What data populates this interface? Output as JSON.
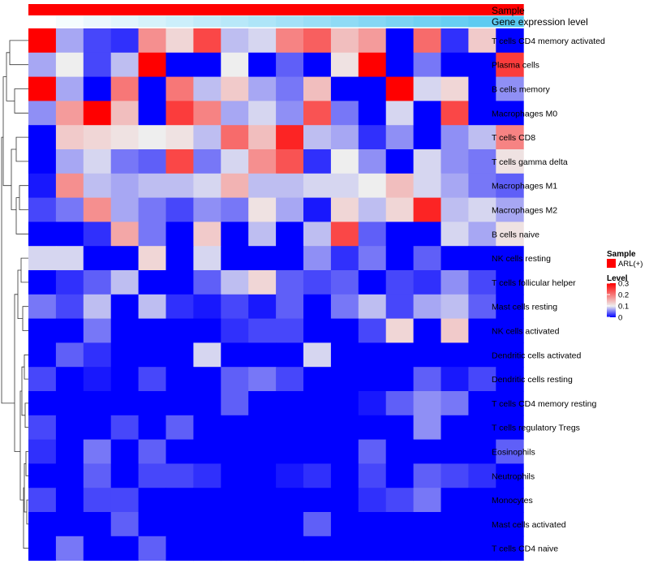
{
  "chart_data": {
    "type": "heatmap",
    "title": "",
    "annotations": [
      {
        "name": "Sample",
        "key": "sample"
      },
      {
        "name": "Gene expression level",
        "key": "expression"
      }
    ],
    "annotation_colors": {
      "sample": "#ff0000",
      "expression_low": "#ffffff",
      "expression_high": "#56c8f0"
    },
    "rows": [
      "T cells CD4 memory activated",
      "Plasma cells",
      "B cells memory",
      "Macrophages M0",
      "T cells CD8",
      "T cells gamma delta",
      "Macrophages M1",
      "Macrophages M2",
      "B cells naive",
      "NK cells resting",
      "T cells follicular helper",
      "Mast cells resting",
      "NK cells activated",
      "Dendritic cells activated",
      "Dendritic cells resting",
      "T cells CD4 memory resting",
      "T cells regulatory  Tregs",
      "Eosinophils",
      "Neutrophils",
      "Monocytes",
      "Mast cells activated",
      "T cells CD4 naive"
    ],
    "column_count": 18,
    "values": [
      [
        0.3,
        0.07,
        0.03,
        0.02,
        0.18,
        0.12,
        0.24,
        0.08,
        0.09,
        0.19,
        0.22,
        0.14,
        0.17,
        0.0,
        0.21,
        0.02,
        0.13,
        0.0
      ],
      [
        0.07,
        0.1,
        0.03,
        0.08,
        0.3,
        0.0,
        0.0,
        0.1,
        0.0,
        0.04,
        0.0,
        0.11,
        0.3,
        0.0,
        0.05,
        0.0,
        0.0,
        0.25
      ],
      [
        0.3,
        0.07,
        0.0,
        0.2,
        0.0,
        0.2,
        0.08,
        0.13,
        0.07,
        0.05,
        0.14,
        0.0,
        0.0,
        0.3,
        0.09,
        0.12,
        0.0,
        0.06
      ],
      [
        0.06,
        0.17,
        0.3,
        0.14,
        0.0,
        0.25,
        0.19,
        0.07,
        0.09,
        0.06,
        0.23,
        0.05,
        0.0,
        0.09,
        0.0,
        0.24,
        0.0,
        0.0
      ],
      [
        0.0,
        0.13,
        0.12,
        0.11,
        0.1,
        0.11,
        0.08,
        0.21,
        0.14,
        0.27,
        0.08,
        0.07,
        0.02,
        0.06,
        0.0,
        0.06,
        0.08,
        0.19
      ],
      [
        0.0,
        0.07,
        0.09,
        0.05,
        0.04,
        0.24,
        0.05,
        0.09,
        0.18,
        0.23,
        0.02,
        0.1,
        0.06,
        0.0,
        0.09,
        0.06,
        0.05,
        0.11
      ],
      [
        0.01,
        0.18,
        0.08,
        0.07,
        0.08,
        0.08,
        0.09,
        0.15,
        0.08,
        0.08,
        0.09,
        0.09,
        0.1,
        0.14,
        0.09,
        0.07,
        0.05,
        0.04
      ],
      [
        0.03,
        0.05,
        0.18,
        0.07,
        0.05,
        0.03,
        0.06,
        0.05,
        0.11,
        0.07,
        0.01,
        0.12,
        0.08,
        0.12,
        0.27,
        0.08,
        0.09,
        0.07
      ],
      [
        0.0,
        0.0,
        0.02,
        0.16,
        0.05,
        0.0,
        0.13,
        0.0,
        0.08,
        0.0,
        0.08,
        0.24,
        0.04,
        0.0,
        0.0,
        0.09,
        0.07,
        0.11
      ],
      [
        0.09,
        0.09,
        0.0,
        0.0,
        0.12,
        0.0,
        0.09,
        0.0,
        0.0,
        0.0,
        0.06,
        0.02,
        0.05,
        0.0,
        0.04,
        0.0,
        0.0,
        0.0
      ],
      [
        0.0,
        0.02,
        0.04,
        0.08,
        0.0,
        0.0,
        0.04,
        0.08,
        0.12,
        0.04,
        0.03,
        0.04,
        0.0,
        0.03,
        0.02,
        0.06,
        0.03,
        0.0
      ],
      [
        0.05,
        0.03,
        0.08,
        0.0,
        0.08,
        0.02,
        0.01,
        0.03,
        0.01,
        0.04,
        0.0,
        0.05,
        0.08,
        0.03,
        0.07,
        0.08,
        0.04,
        0.0
      ],
      [
        0.0,
        0.0,
        0.05,
        0.0,
        0.0,
        0.0,
        0.0,
        0.02,
        0.03,
        0.03,
        0.0,
        0.0,
        0.03,
        0.12,
        0.0,
        0.13,
        0.0,
        0.0
      ],
      [
        0.0,
        0.04,
        0.02,
        0.0,
        0.0,
        0.0,
        0.09,
        0.0,
        0.0,
        0.0,
        0.09,
        0.0,
        0.0,
        0.0,
        0.0,
        0.0,
        0.0,
        0.0
      ],
      [
        0.03,
        0.0,
        0.01,
        0.0,
        0.03,
        0.0,
        0.0,
        0.04,
        0.05,
        0.03,
        0.0,
        0.0,
        0.0,
        0.0,
        0.04,
        0.01,
        0.03,
        0.0
      ],
      [
        0.0,
        0.0,
        0.0,
        0.0,
        0.0,
        0.0,
        0.0,
        0.04,
        0.0,
        0.0,
        0.0,
        0.0,
        0.01,
        0.04,
        0.06,
        0.05,
        0.0,
        0.0
      ],
      [
        0.03,
        0.0,
        0.0,
        0.03,
        0.0,
        0.04,
        0.0,
        0.0,
        0.0,
        0.0,
        0.0,
        0.0,
        0.0,
        0.0,
        0.06,
        0.0,
        0.0,
        0.0
      ],
      [
        0.02,
        0.0,
        0.05,
        0.0,
        0.04,
        0.0,
        0.0,
        0.0,
        0.0,
        0.0,
        0.0,
        0.0,
        0.04,
        0.0,
        0.0,
        0.0,
        0.0,
        0.04
      ],
      [
        0.0,
        0.0,
        0.04,
        0.0,
        0.03,
        0.03,
        0.02,
        0.0,
        0.0,
        0.01,
        0.02,
        0.0,
        0.03,
        0.0,
        0.04,
        0.03,
        0.02,
        0.0
      ],
      [
        0.03,
        0.0,
        0.03,
        0.03,
        0.0,
        0.0,
        0.0,
        0.0,
        0.0,
        0.0,
        0.0,
        0.0,
        0.02,
        0.03,
        0.05,
        0.0,
        0.0,
        0.0
      ],
      [
        0.0,
        0.0,
        0.0,
        0.04,
        0.0,
        0.0,
        0.0,
        0.0,
        0.0,
        0.0,
        0.04,
        0.0,
        0.0,
        0.0,
        0.0,
        0.0,
        0.0,
        0.0
      ],
      [
        0.0,
        0.05,
        0.0,
        0.0,
        0.04,
        0.0,
        0.0,
        0.0,
        0.0,
        0.0,
        0.0,
        0.0,
        0.0,
        0.0,
        0.0,
        0.0,
        0.0,
        0.0
      ]
    ],
    "expression_levels": [
      0.0,
      0.06,
      0.12,
      0.18,
      0.24,
      0.3,
      0.36,
      0.42,
      0.48,
      0.54,
      0.6,
      0.66,
      0.72,
      0.78,
      0.84,
      0.9,
      0.95,
      1.0
    ],
    "color_scale": {
      "min": 0,
      "mid": 0.1,
      "max": 0.3,
      "low_color": "#0000ff",
      "mid_color": "#eeeeee",
      "high_color": "#ff0000"
    },
    "legend": {
      "sample_title": "Sample",
      "sample_entry": "ARL(+)",
      "level_title": "Level",
      "level_ticks": [
        "0.3",
        "0.2",
        "0.1",
        "0"
      ],
      "level_tick_values": [
        0.3,
        0.2,
        0.1,
        0
      ],
      "placement": "right"
    },
    "dendrogram": "row"
  }
}
